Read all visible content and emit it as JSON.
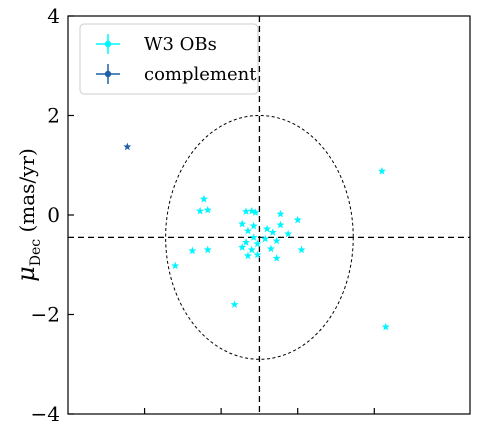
{
  "chart_data": {
    "type": "scatter",
    "ylabel_main": "μ",
    "ylabel_sub": "Dec",
    "ylabel_unit": "(mas/yr)",
    "xlabel": "",
    "ylim": [
      -4,
      4
    ],
    "xlim": [
      -5,
      5.5
    ],
    "yticks": [
      {
        "value": 4,
        "label": "4"
      },
      {
        "value": 2,
        "label": "2"
      },
      {
        "value": 0,
        "label": "0"
      },
      {
        "value": -2,
        "label": "−2"
      },
      {
        "value": -4,
        "label": "−4"
      }
    ],
    "xticks_minor": [
      -3,
      -1,
      1,
      3
    ],
    "reference_lines": {
      "x": 0.0,
      "y": -0.45
    },
    "circle": {
      "center": [
        0.0,
        -0.45
      ],
      "radius": 2.45
    },
    "legend": {
      "placement": "top-left",
      "entries": [
        {
          "label": "W3 OBs",
          "color": "#00f5ff"
        },
        {
          "label": "complement",
          "color": "#1f5fa8"
        }
      ]
    },
    "series": [
      {
        "name": "W3 OBs",
        "color": "#00f5ff",
        "marker": "star",
        "points": [
          {
            "x": 3.2,
            "y": 0.88
          },
          {
            "x": 3.3,
            "y": -2.25
          },
          {
            "x": -1.45,
            "y": 0.32
          },
          {
            "x": -1.55,
            "y": 0.08
          },
          {
            "x": -1.35,
            "y": 0.1
          },
          {
            "x": -0.35,
            "y": 0.07
          },
          {
            "x": -0.2,
            "y": 0.08
          },
          {
            "x": -0.1,
            "y": 0.05
          },
          {
            "x": 0.55,
            "y": 0.02
          },
          {
            "x": 1.0,
            "y": -0.1
          },
          {
            "x": -0.45,
            "y": -0.18
          },
          {
            "x": -0.15,
            "y": -0.22
          },
          {
            "x": 0.2,
            "y": -0.28
          },
          {
            "x": 0.55,
            "y": -0.2
          },
          {
            "x": -0.3,
            "y": -0.32
          },
          {
            "x": 0.35,
            "y": -0.35
          },
          {
            "x": 0.75,
            "y": -0.38
          },
          {
            "x": -0.15,
            "y": -0.45
          },
          {
            "x": 0.15,
            "y": -0.48
          },
          {
            "x": 0.45,
            "y": -0.52
          },
          {
            "x": -0.35,
            "y": -0.55
          },
          {
            "x": -0.05,
            "y": -0.58
          },
          {
            "x": -0.45,
            "y": -0.65
          },
          {
            "x": -0.2,
            "y": -0.7
          },
          {
            "x": 0.3,
            "y": -0.68
          },
          {
            "x": -1.35,
            "y": -0.7
          },
          {
            "x": -1.75,
            "y": -0.72
          },
          {
            "x": 1.1,
            "y": -0.7
          },
          {
            "x": -0.3,
            "y": -0.82
          },
          {
            "x": -0.05,
            "y": -0.8
          },
          {
            "x": 0.45,
            "y": -0.87
          },
          {
            "x": -2.2,
            "y": -1.02
          },
          {
            "x": -0.65,
            "y": -1.8
          }
        ]
      },
      {
        "name": "complement",
        "color": "#1f5fa8",
        "marker": "star",
        "points": [
          {
            "x": -3.45,
            "y": 1.37
          }
        ]
      }
    ]
  }
}
